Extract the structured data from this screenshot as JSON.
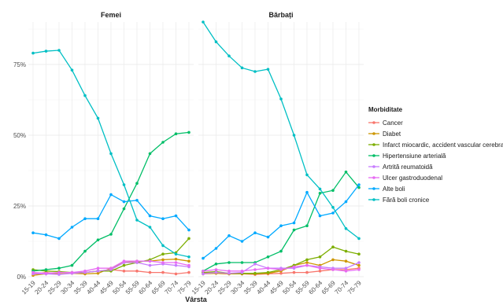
{
  "chart_data": {
    "type": "line",
    "xlabel": "Vârsta",
    "ylabel": "",
    "ylim": [
      0,
      0.9
    ],
    "yticks": [
      0,
      0.25,
      0.5,
      0.75
    ],
    "ytick_labels": [
      "0%",
      "25%",
      "50%",
      "75%"
    ],
    "grid": true,
    "legend_title": "Morbiditate",
    "legend_position": "right",
    "categories": [
      "15-19",
      "20-24",
      "25-29",
      "30-34",
      "35-39",
      "40-44",
      "45-49",
      "50-54",
      "55-59",
      "60-64",
      "65-69",
      "70-74",
      "75-79"
    ],
    "series_meta": [
      {
        "name": "Cancer",
        "color": "#F8766D"
      },
      {
        "name": "Diabet",
        "color": "#CD9600"
      },
      {
        "name": "Infarct miocardic, accident vascular cerebral",
        "color": "#7CAE00"
      },
      {
        "name": "Hipertensiune arterială",
        "color": "#00BE67"
      },
      {
        "name": "Artrită reumatoidă",
        "color": "#C77CFF"
      },
      {
        "name": "Ulcer gastroduodenal",
        "color": "#E76BF3"
      },
      {
        "name": "Alte boli",
        "color": "#00A9FF"
      },
      {
        "name": "Fără boli cronice",
        "color": "#00BFC4"
      }
    ],
    "panels": [
      {
        "title": "Femei",
        "series": [
          {
            "name": "Cancer",
            "values": [
              0.01,
              0.015,
              0.01,
              0.012,
              0.015,
              0.02,
              0.025,
              0.02,
              0.02,
              0.015,
              0.015,
              0.01,
              0.015
            ]
          },
          {
            "name": "Diabet",
            "values": [
              0.005,
              0.01,
              0.01,
              0.012,
              0.01,
              0.012,
              0.03,
              0.05,
              0.055,
              0.055,
              0.06,
              0.062,
              0.055
            ]
          },
          {
            "name": "Infarct miocardic, accident vascular cerebral",
            "values": [
              0.025,
              0.02,
              0.018,
              0.015,
              0.015,
              0.02,
              0.02,
              0.04,
              0.05,
              0.06,
              0.08,
              0.085,
              0.135
            ]
          },
          {
            "name": "Hipertensiune arterială",
            "values": [
              0.02,
              0.025,
              0.03,
              0.04,
              0.09,
              0.13,
              0.15,
              0.24,
              0.33,
              0.435,
              0.475,
              0.505,
              0.51
            ]
          },
          {
            "name": "Artrită reumatoidă",
            "values": [
              0.01,
              0.01,
              0.008,
              0.012,
              0.015,
              0.02,
              0.025,
              0.05,
              0.05,
              0.04,
              0.045,
              0.04,
              0.035
            ]
          },
          {
            "name": "Ulcer gastroduodenal",
            "values": [
              0.015,
              0.012,
              0.015,
              0.015,
              0.02,
              0.03,
              0.03,
              0.055,
              0.055,
              0.055,
              0.05,
              0.05,
              0.04
            ]
          },
          {
            "name": "Alte boli",
            "values": [
              0.155,
              0.148,
              0.135,
              0.175,
              0.205,
              0.205,
              0.29,
              0.265,
              0.27,
              0.215,
              0.205,
              0.215,
              0.165
            ]
          },
          {
            "name": "Fără boli cronice",
            "values": [
              0.79,
              0.797,
              0.8,
              0.73,
              0.64,
              0.56,
              0.435,
              0.325,
              0.2,
              0.175,
              0.11,
              0.08,
              0.07
            ]
          }
        ]
      },
      {
        "title": "Bărbați",
        "series": [
          {
            "name": "Cancer",
            "values": [
              0.015,
              0.012,
              0.01,
              0.01,
              0.008,
              0.01,
              0.012,
              0.015,
              0.015,
              0.02,
              0.025,
              0.025,
              0.03
            ]
          },
          {
            "name": "Diabet",
            "values": [
              0.01,
              0.012,
              0.01,
              0.01,
              0.01,
              0.012,
              0.02,
              0.04,
              0.05,
              0.04,
              0.06,
              0.055,
              0.04
            ]
          },
          {
            "name": "Infarct miocardic, accident vascular cerebral",
            "values": [
              0.015,
              0.018,
              0.012,
              0.012,
              0.012,
              0.015,
              0.025,
              0.04,
              0.06,
              0.07,
              0.105,
              0.09,
              0.08
            ]
          },
          {
            "name": "Hipertensiune arterială",
            "values": [
              0.02,
              0.045,
              0.05,
              0.05,
              0.05,
              0.07,
              0.09,
              0.165,
              0.18,
              0.295,
              0.305,
              0.37,
              0.315
            ]
          },
          {
            "name": "Artrită reumatoidă",
            "values": [
              0.01,
              0.015,
              0.012,
              0.015,
              0.045,
              0.03,
              0.03,
              0.03,
              0.04,
              0.035,
              0.03,
              0.03,
              0.05
            ]
          },
          {
            "name": "Ulcer gastroduodenal",
            "values": [
              0.02,
              0.025,
              0.02,
              0.02,
              0.025,
              0.03,
              0.025,
              0.035,
              0.04,
              0.03,
              0.025,
              0.02,
              0.025
            ]
          },
          {
            "name": "Alte boli",
            "values": [
              0.065,
              0.1,
              0.145,
              0.125,
              0.155,
              0.14,
              0.18,
              0.19,
              0.298,
              0.215,
              0.225,
              0.265,
              0.325
            ]
          },
          {
            "name": "Fără boli cronice",
            "values": [
              0.9,
              0.83,
              0.78,
              0.738,
              0.725,
              0.733,
              0.628,
              0.5,
              0.36,
              0.31,
              0.245,
              0.17,
              0.135
            ]
          }
        ]
      }
    ]
  }
}
